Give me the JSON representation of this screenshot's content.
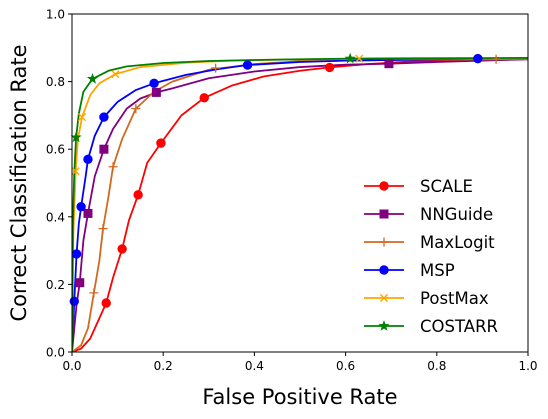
{
  "chart_data": {
    "type": "line",
    "xlabel": "False Positive Rate",
    "ylabel": "Correct Classification Rate",
    "xlim": [
      0,
      1
    ],
    "ylim": [
      0,
      1
    ],
    "xticks": [
      "0.0",
      "0.2",
      "0.4",
      "0.6",
      "0.8",
      "1.0"
    ],
    "yticks": [
      "0.0",
      "0.2",
      "0.4",
      "0.6",
      "0.8",
      "1.0"
    ],
    "grid": false,
    "legend_position": "lower-right",
    "series": [
      {
        "name": "SCALE",
        "color": "#ff0000",
        "marker": "circle",
        "line": [
          [
            0,
            0
          ],
          [
            0.02,
            0.01
          ],
          [
            0.04,
            0.04
          ],
          [
            0.06,
            0.1
          ],
          [
            0.075,
            0.145
          ],
          [
            0.09,
            0.22
          ],
          [
            0.11,
            0.305
          ],
          [
            0.125,
            0.39
          ],
          [
            0.145,
            0.465
          ],
          [
            0.165,
            0.56
          ],
          [
            0.195,
            0.618
          ],
          [
            0.24,
            0.7
          ],
          [
            0.29,
            0.752
          ],
          [
            0.35,
            0.788
          ],
          [
            0.42,
            0.815
          ],
          [
            0.5,
            0.832
          ],
          [
            0.565,
            0.842
          ],
          [
            0.65,
            0.852
          ],
          [
            0.75,
            0.86
          ],
          [
            0.85,
            0.864
          ],
          [
            1,
            0.868
          ]
        ],
        "markers": [
          [
            0.075,
            0.145
          ],
          [
            0.11,
            0.305
          ],
          [
            0.145,
            0.465
          ],
          [
            0.195,
            0.618
          ],
          [
            0.29,
            0.752
          ],
          [
            0.565,
            0.842
          ]
        ]
      },
      {
        "name": "NNGuide",
        "color": "#800080",
        "marker": "square",
        "line": [
          [
            0,
            0
          ],
          [
            0.005,
            0.07
          ],
          [
            0.01,
            0.14
          ],
          [
            0.017,
            0.205
          ],
          [
            0.025,
            0.33
          ],
          [
            0.035,
            0.41
          ],
          [
            0.05,
            0.52
          ],
          [
            0.07,
            0.6
          ],
          [
            0.09,
            0.66
          ],
          [
            0.12,
            0.72
          ],
          [
            0.15,
            0.75
          ],
          [
            0.185,
            0.768
          ],
          [
            0.22,
            0.78
          ],
          [
            0.3,
            0.81
          ],
          [
            0.4,
            0.83
          ],
          [
            0.5,
            0.843
          ],
          [
            0.6,
            0.85
          ],
          [
            0.695,
            0.853
          ],
          [
            0.8,
            0.858
          ],
          [
            0.9,
            0.862
          ],
          [
            1,
            0.866
          ]
        ],
        "markers": [
          [
            0.017,
            0.205
          ],
          [
            0.035,
            0.41
          ],
          [
            0.07,
            0.6
          ],
          [
            0.185,
            0.768
          ],
          [
            0.695,
            0.853
          ]
        ]
      },
      {
        "name": "MaxLogit",
        "color": "#d2691e",
        "marker": "plus",
        "line": [
          [
            0,
            0
          ],
          [
            0.02,
            0.02
          ],
          [
            0.035,
            0.07
          ],
          [
            0.048,
            0.175
          ],
          [
            0.06,
            0.27
          ],
          [
            0.068,
            0.365
          ],
          [
            0.08,
            0.46
          ],
          [
            0.09,
            0.548
          ],
          [
            0.11,
            0.63
          ],
          [
            0.14,
            0.72
          ],
          [
            0.18,
            0.77
          ],
          [
            0.22,
            0.8
          ],
          [
            0.3,
            0.835
          ],
          [
            0.4,
            0.852
          ],
          [
            0.5,
            0.86
          ],
          [
            0.6,
            0.862
          ],
          [
            0.7,
            0.864
          ],
          [
            0.8,
            0.865
          ],
          [
            0.93,
            0.866
          ],
          [
            1,
            0.867
          ]
        ],
        "markers": [
          [
            0.048,
            0.175
          ],
          [
            0.068,
            0.365
          ],
          [
            0.09,
            0.548
          ],
          [
            0.14,
            0.72
          ],
          [
            0.315,
            0.84
          ],
          [
            0.93,
            0.866
          ]
        ]
      },
      {
        "name": "MSP",
        "color": "#0000ff",
        "marker": "circle",
        "line": [
          [
            0,
            0
          ],
          [
            0.005,
            0.15
          ],
          [
            0.01,
            0.29
          ],
          [
            0.015,
            0.38
          ],
          [
            0.02,
            0.43
          ],
          [
            0.03,
            0.52
          ],
          [
            0.035,
            0.57
          ],
          [
            0.05,
            0.64
          ],
          [
            0.07,
            0.695
          ],
          [
            0.1,
            0.74
          ],
          [
            0.14,
            0.775
          ],
          [
            0.18,
            0.795
          ],
          [
            0.25,
            0.82
          ],
          [
            0.32,
            0.837
          ],
          [
            0.385,
            0.849
          ],
          [
            0.5,
            0.858
          ],
          [
            0.6,
            0.862
          ],
          [
            0.7,
            0.864
          ],
          [
            0.8,
            0.866
          ],
          [
            0.89,
            0.868
          ],
          [
            1,
            0.869
          ]
        ],
        "markers": [
          [
            0.005,
            0.15
          ],
          [
            0.01,
            0.29
          ],
          [
            0.02,
            0.43
          ],
          [
            0.035,
            0.57
          ],
          [
            0.07,
            0.695
          ],
          [
            0.18,
            0.795
          ],
          [
            0.385,
            0.849
          ],
          [
            0.89,
            0.868
          ]
        ]
      },
      {
        "name": "PostMax",
        "color": "#ffa500",
        "marker": "x",
        "line": [
          [
            0,
            0
          ],
          [
            0.003,
            0.35
          ],
          [
            0.008,
            0.535
          ],
          [
            0.013,
            0.63
          ],
          [
            0.022,
            0.695
          ],
          [
            0.04,
            0.76
          ],
          [
            0.06,
            0.795
          ],
          [
            0.095,
            0.822
          ],
          [
            0.15,
            0.843
          ],
          [
            0.25,
            0.856
          ],
          [
            0.35,
            0.862
          ],
          [
            0.45,
            0.865
          ],
          [
            0.55,
            0.866
          ],
          [
            0.65,
            0.868
          ],
          [
            0.75,
            0.868
          ],
          [
            1,
            0.869
          ]
        ],
        "markers": [
          [
            0.008,
            0.535
          ],
          [
            0.022,
            0.695
          ],
          [
            0.095,
            0.822
          ],
          [
            0.63,
            0.868
          ]
        ]
      },
      {
        "name": "COSTARR",
        "color": "#008000",
        "marker": "star",
        "line": [
          [
            0,
            0
          ],
          [
            0.002,
            0.38
          ],
          [
            0.005,
            0.53
          ],
          [
            0.009,
            0.635
          ],
          [
            0.015,
            0.705
          ],
          [
            0.025,
            0.77
          ],
          [
            0.045,
            0.808
          ],
          [
            0.08,
            0.832
          ],
          [
            0.12,
            0.845
          ],
          [
            0.2,
            0.855
          ],
          [
            0.3,
            0.861
          ],
          [
            0.4,
            0.864
          ],
          [
            0.5,
            0.866
          ],
          [
            0.61,
            0.868
          ],
          [
            0.75,
            0.869
          ],
          [
            1,
            0.87
          ]
        ],
        "markers": [
          [
            0.009,
            0.635
          ],
          [
            0.045,
            0.808
          ],
          [
            0.61,
            0.868
          ]
        ]
      }
    ]
  }
}
